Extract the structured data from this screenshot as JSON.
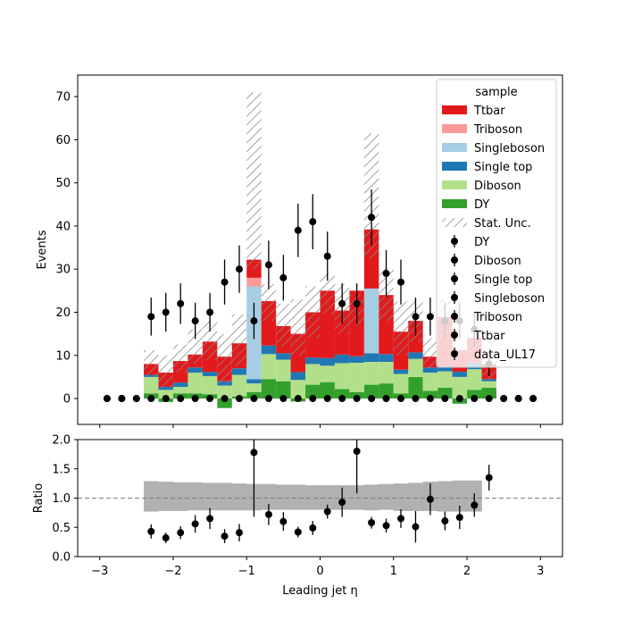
{
  "chart_data": [
    {
      "type": "bar",
      "subtype": "stacked-histogram",
      "ylabel": "Events",
      "ylim": [
        -6,
        75
      ],
      "xlim": [
        -3.3,
        3.3
      ],
      "yticks": [
        0,
        10,
        20,
        30,
        40,
        50,
        60,
        70
      ],
      "bin_edges": [
        -2.4,
        -2.2,
        -2.0,
        -1.8,
        -1.6,
        -1.4,
        -1.2,
        -1.0,
        -0.8,
        -0.6,
        -0.4,
        -0.2,
        0.0,
        0.2,
        0.4,
        0.6,
        0.8,
        1.0,
        1.2,
        1.4,
        1.6,
        1.8,
        2.0,
        2.2,
        2.4
      ],
      "series": [
        {
          "name": "DY",
          "color": "#33a02c",
          "values": [
            1.2,
            -0.8,
            1.2,
            1.2,
            1.0,
            -2.2,
            0.5,
            1.5,
            4.5,
            4.0,
            -0.7,
            3.2,
            3.8,
            2.2,
            1.5,
            3.2,
            3.5,
            1.2,
            5.0,
            1.8,
            2.5,
            -1.2,
            2.0,
            2.5
          ]
        },
        {
          "name": "Diboson",
          "color": "#b2df8a",
          "values": [
            3.8,
            2.0,
            1.5,
            4.8,
            4.2,
            3.0,
            5.0,
            2.0,
            5.8,
            5.0,
            4.3,
            4.8,
            3.8,
            6.0,
            6.8,
            5.3,
            5.0,
            4.5,
            4.2,
            4.2,
            3.8,
            5.0,
            4.8,
            1.5
          ]
        },
        {
          "name": "Single top",
          "color": "#1f78b4",
          "values": [
            0.5,
            0.7,
            1.0,
            1.2,
            1.0,
            1.0,
            1.5,
            1.0,
            2.0,
            1.5,
            1.8,
            1.5,
            1.8,
            2.0,
            1.5,
            2.0,
            1.8,
            1.0,
            1.5,
            1.2,
            1.2,
            1.2,
            1.5,
            0.5
          ]
        },
        {
          "name": "Singleboson",
          "color": "#a6cee3",
          "values": [
            0,
            0,
            0,
            0,
            0,
            0,
            0,
            21.5,
            0,
            0,
            0,
            0,
            0,
            0,
            0,
            15.0,
            0,
            0,
            0,
            0,
            0,
            0,
            0,
            0
          ]
        },
        {
          "name": "Triboson",
          "color": "#fb9a99",
          "values": [
            0,
            0,
            0,
            0,
            0,
            0,
            0,
            2.0,
            0,
            0,
            0,
            0,
            0,
            0,
            0,
            0,
            0,
            0,
            0,
            0,
            0,
            0,
            0,
            0
          ]
        },
        {
          "name": "Ttbar",
          "color": "#e31a1c",
          "values": [
            2.5,
            3.3,
            5.0,
            3.0,
            7.0,
            5.7,
            5.8,
            4.2,
            10.3,
            6.3,
            8.9,
            10.5,
            15.6,
            10.2,
            15.2,
            13.7,
            13.7,
            8.8,
            7.3,
            2.5,
            11.4,
            5.0,
            5.7,
            3.5
          ]
        }
      ],
      "stat_unc_top": [
        11.2,
        10.0,
        12.5,
        16.0,
        18.0,
        15.0,
        19.5,
        71.0,
        26.5,
        22.0,
        23.0,
        26.0,
        29.0,
        26.5,
        24.0,
        61.5,
        30.0,
        22.5,
        22.5,
        14.0,
        23.0,
        11.5,
        13.0,
        9.5
      ],
      "stat_unc_bottom": [
        5.0,
        2.5,
        6.0,
        8.0,
        9.0,
        3.0,
        7.5,
        30.0,
        18.0,
        12.0,
        10.0,
        14.0,
        19.5,
        15.0,
        17.0,
        32.5,
        18.0,
        10.0,
        13.0,
        7.0,
        13.5,
        9.0,
        8.0,
        4.5
      ],
      "data": {
        "name": "data_UL17",
        "x": [
          -2.9,
          -2.7,
          -2.5,
          -2.3,
          -2.1,
          -1.9,
          -1.7,
          -1.5,
          -1.3,
          -1.1,
          -0.9,
          -0.7,
          -0.5,
          -0.3,
          -0.1,
          0.1,
          0.3,
          0.5,
          0.7,
          0.9,
          1.1,
          1.3,
          1.5,
          1.7,
          1.9,
          2.1,
          2.3,
          2.5,
          2.7,
          2.9
        ],
        "y": [
          0,
          0,
          0,
          19,
          20,
          22,
          18,
          20,
          27,
          30,
          18,
          31,
          28,
          39,
          41,
          33,
          22,
          22,
          42,
          29,
          27,
          19,
          19,
          18,
          18,
          16,
          8,
          0,
          0,
          0
        ],
        "yerr": [
          0,
          0,
          0,
          4.4,
          4.5,
          4.7,
          4.2,
          4.5,
          5.2,
          5.5,
          4.2,
          5.6,
          5.3,
          6.2,
          6.4,
          5.7,
          4.7,
          4.7,
          6.5,
          5.4,
          5.2,
          4.4,
          4.4,
          4.2,
          4.2,
          4.0,
          2.8,
          0,
          0,
          0
        ],
        "markers_at_zero": [
          -2.9,
          -2.7,
          -2.5,
          -2.3,
          -2.1,
          -1.9,
          -1.7,
          -1.5,
          -1.3,
          -1.1,
          -0.9,
          -0.7,
          -0.5,
          -0.3,
          -0.1,
          0.1,
          0.3,
          0.5,
          0.7,
          0.9,
          1.1,
          1.3,
          1.5,
          1.7,
          1.9,
          2.1,
          2.3,
          2.5,
          2.7,
          2.9
        ]
      },
      "legend": {
        "title": "sample",
        "placement": "upper right",
        "entries": [
          {
            "label": "Ttbar",
            "kind": "patch",
            "color": "#e31a1c"
          },
          {
            "label": "Triboson",
            "kind": "patch",
            "color": "#fb9a99"
          },
          {
            "label": "Singleboson",
            "kind": "patch",
            "color": "#a6cee3"
          },
          {
            "label": "Single top",
            "kind": "patch",
            "color": "#1f78b4"
          },
          {
            "label": "Diboson",
            "kind": "patch",
            "color": "#b2df8a"
          },
          {
            "label": "DY",
            "kind": "patch",
            "color": "#33a02c"
          },
          {
            "label": "Stat. Unc.",
            "kind": "hatch",
            "color": "#888888"
          },
          {
            "label": "DY",
            "kind": "marker",
            "color": "#000000"
          },
          {
            "label": "Diboson",
            "kind": "marker",
            "color": "#000000"
          },
          {
            "label": "Single top",
            "kind": "marker",
            "color": "#000000"
          },
          {
            "label": "Singleboson",
            "kind": "marker",
            "color": "#000000"
          },
          {
            "label": "Triboson",
            "kind": "marker",
            "color": "#000000"
          },
          {
            "label": "Ttbar",
            "kind": "marker",
            "color": "#000000"
          },
          {
            "label": "data_UL17",
            "kind": "marker",
            "color": "#000000"
          }
        ]
      }
    },
    {
      "type": "scatter",
      "subtype": "ratio",
      "xlabel": "Leading jet  η",
      "ylabel": "Ratio",
      "xlim": [
        -3.3,
        3.3
      ],
      "ylim": [
        0.0,
        2.0
      ],
      "xticks": [
        -3,
        -2,
        -1,
        0,
        1,
        2,
        3
      ],
      "yticks": [
        0.0,
        0.5,
        1.0,
        1.5,
        2.0
      ],
      "reference_line": 1.0,
      "band_edges": [
        -2.4,
        -2.2,
        -2.0,
        -1.8,
        -1.6,
        -1.4,
        -1.2,
        -1.0,
        -0.8,
        -0.6,
        -0.4,
        -0.2,
        0.0,
        0.2,
        0.4,
        0.6,
        0.8,
        1.0,
        1.2,
        1.4,
        1.6,
        1.8,
        2.0,
        2.2
      ],
      "band_low": [
        0.77,
        0.78,
        0.78,
        0.79,
        0.79,
        0.79,
        0.79,
        0.79,
        0.8,
        0.8,
        0.8,
        0.8,
        0.8,
        0.8,
        0.8,
        0.79,
        0.8,
        0.78,
        0.78,
        0.78,
        0.77,
        0.77,
        0.77
      ],
      "band_high": [
        1.29,
        1.28,
        1.27,
        1.27,
        1.26,
        1.26,
        1.25,
        1.24,
        1.24,
        1.23,
        1.23,
        1.22,
        1.22,
        1.22,
        1.22,
        1.23,
        1.24,
        1.25,
        1.26,
        1.28,
        1.29,
        1.3,
        1.3
      ],
      "x": [
        -2.3,
        -2.1,
        -1.9,
        -1.7,
        -1.5,
        -1.3,
        -1.1,
        -0.9,
        -0.7,
        -0.5,
        -0.3,
        -0.1,
        0.1,
        0.3,
        0.5,
        0.7,
        0.9,
        1.1,
        1.3,
        1.5,
        1.7,
        1.9,
        2.1,
        2.3
      ],
      "y": [
        0.43,
        0.32,
        0.41,
        0.56,
        0.65,
        0.35,
        0.41,
        1.78,
        0.72,
        0.6,
        0.42,
        0.49,
        0.77,
        0.93,
        1.8,
        0.58,
        0.53,
        0.65,
        0.51,
        0.98,
        0.61,
        0.67,
        0.88,
        1.35
      ],
      "yerr": [
        0.12,
        0.09,
        0.11,
        0.15,
        0.18,
        0.12,
        0.15,
        1.1,
        0.18,
        0.16,
        0.09,
        0.12,
        0.12,
        0.25,
        0.72,
        0.1,
        0.12,
        0.16,
        0.27,
        0.27,
        0.16,
        0.2,
        0.2,
        0.22
      ]
    }
  ]
}
